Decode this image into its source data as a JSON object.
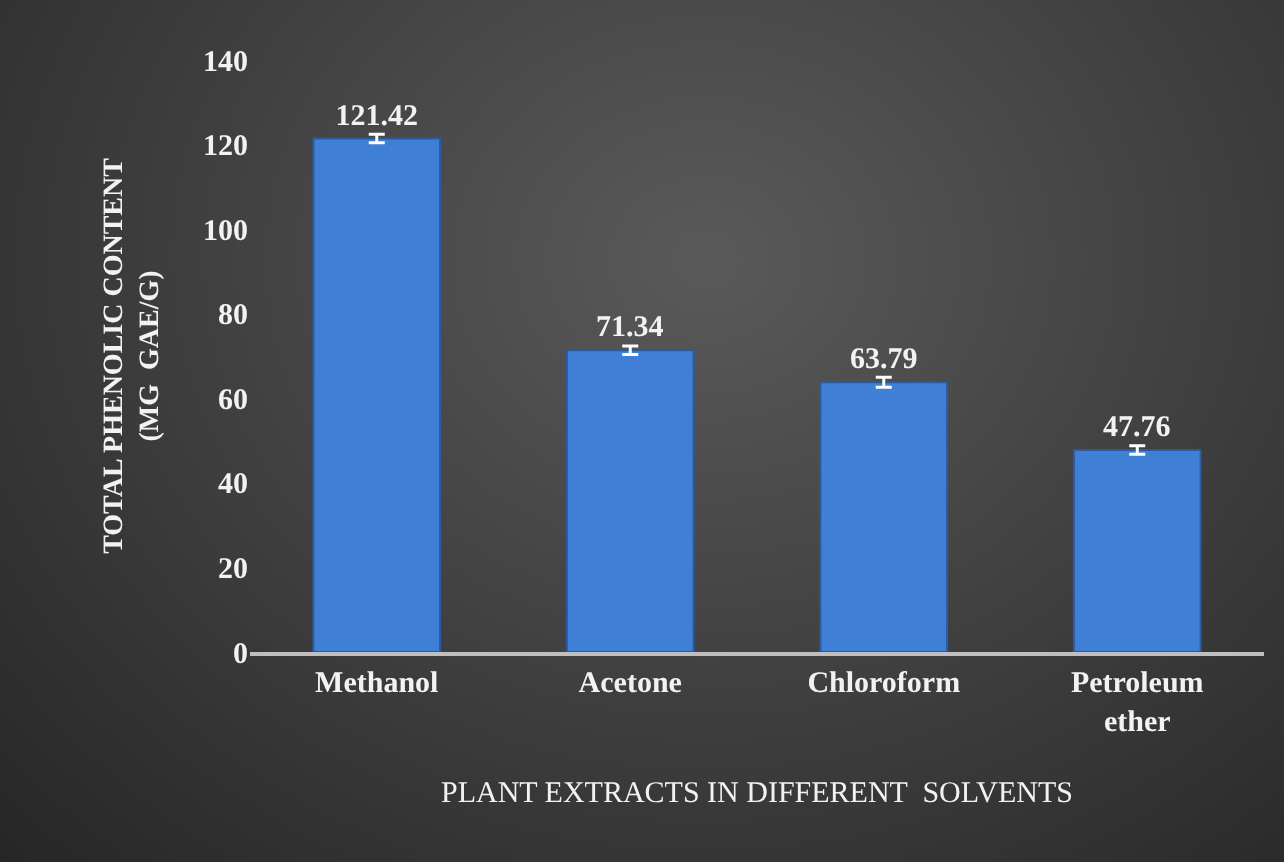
{
  "chart_data": {
    "type": "bar",
    "xlabel": "PLANT EXTRACTS IN DIFFERENT  SOLVENTS",
    "ylabel": "TOTAL PHENOLIC CONTENT (MG  GAE/G)",
    "categories": [
      "Methanol",
      "Acetone",
      "Chloroform",
      "Petroleum ether"
    ],
    "values": [
      121.42,
      71.34,
      63.79,
      47.76
    ],
    "errors": [
      1,
      1,
      1.2,
      1
    ],
    "color": "#3f7fd6",
    "data_labels": true,
    "ylim": [
      0,
      140
    ],
    "yticks": [
      0,
      20,
      40,
      60,
      80,
      100,
      120,
      140
    ],
    "grid": false
  }
}
